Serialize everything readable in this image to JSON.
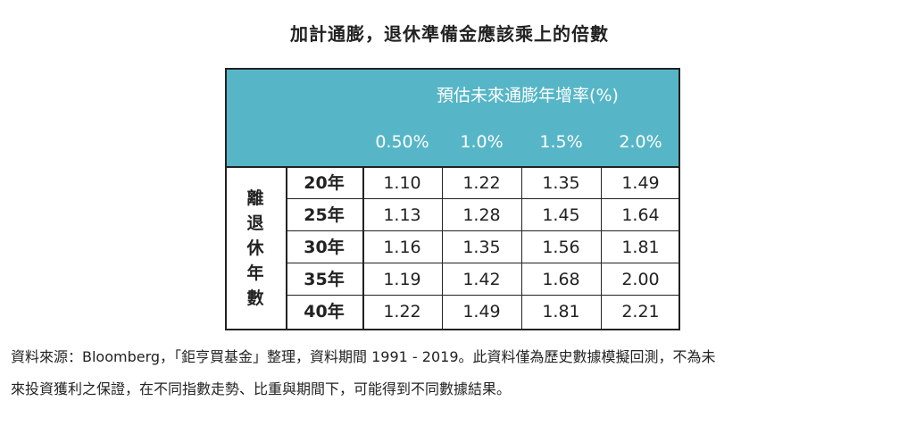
{
  "title": "加計通膨，退休準備金應該乘上的倍數",
  "chart_data": {
    "type": "table",
    "header_label": "預估未來通膨年增率(%)",
    "row_group_label": [
      "離",
      "退",
      "休",
      "年",
      "數"
    ],
    "columns": [
      "0.50%",
      "1.0%",
      "1.5%",
      "2.0%"
    ],
    "rows": [
      {
        "label": "20年",
        "values": [
          "1.10",
          "1.22",
          "1.35",
          "1.49"
        ]
      },
      {
        "label": "25年",
        "values": [
          "1.13",
          "1.28",
          "1.45",
          "1.64"
        ]
      },
      {
        "label": "30年",
        "values": [
          "1.16",
          "1.35",
          "1.56",
          "1.81"
        ]
      },
      {
        "label": "35年",
        "values": [
          "1.19",
          "1.42",
          "1.68",
          "2.00"
        ]
      },
      {
        "label": "40年",
        "values": [
          "1.22",
          "1.49",
          "1.81",
          "2.21"
        ]
      }
    ]
  },
  "footnote": {
    "line1": "資料來源：Bloomberg，「鉅亨買基金」整理，資料期間 1991 - 2019。此資料僅為歷史數據模擬回測，不為未",
    "line2": "來投資獲利之保證，在不同指數走勢、比重與期間下，可能得到不同數據結果。"
  },
  "colors": {
    "header_bg": "#56b6c7",
    "header_text": "#ffffff",
    "border": "#222222"
  }
}
